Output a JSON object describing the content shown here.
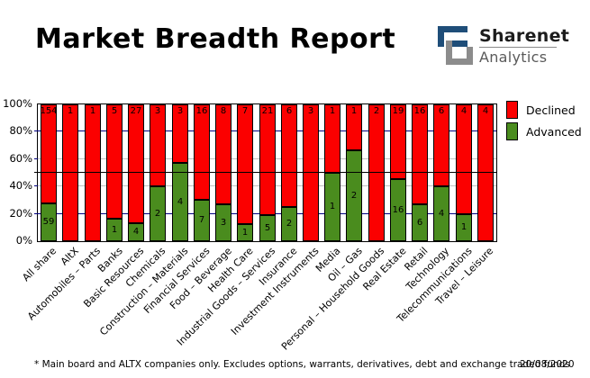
{
  "header": {
    "title": "Market Breadth Report",
    "brand": {
      "name": "Sharenet",
      "tagline": "Analytics",
      "logo_icon": "sharenet-maze-icon"
    }
  },
  "colors": {
    "declined": "#fb0000",
    "advanced": "#4a8c1e",
    "grid_major": "#000080",
    "grid_minor": "#c0c0c0",
    "mid_line": "#000000",
    "brand_blue": "#1f4e79",
    "brand_gray": "#8c8c8c"
  },
  "chart_data": {
    "type": "bar",
    "stacked": true,
    "normalized_to_percent": true,
    "categories": [
      "All share",
      "AltX",
      "Automobiles – Parts",
      "Banks",
      "Basic Resources",
      "Chemicals",
      "Construction – Materials",
      "Financial Services",
      "Food – Beverage",
      "Health Care",
      "Industrial Goods – Services",
      "Insurance",
      "Investment Instruments",
      "Media",
      "Oil – Gas",
      "Personal – Household Goods",
      "Real Estate",
      "Retail",
      "Technology",
      "Telecommunications",
      "Travel – Leisure"
    ],
    "series": [
      {
        "name": "Declined",
        "color": "#fb0000",
        "values": [
          154,
          1,
          1,
          5,
          27,
          3,
          3,
          16,
          8,
          7,
          21,
          6,
          3,
          1,
          1,
          2,
          19,
          16,
          6,
          4,
          4
        ]
      },
      {
        "name": "Advanced",
        "color": "#4a8c1e",
        "values": [
          59,
          0,
          0,
          1,
          4,
          2,
          4,
          7,
          3,
          1,
          5,
          2,
          0,
          1,
          2,
          0,
          16,
          6,
          4,
          1,
          0
        ]
      }
    ],
    "y_ticks": [
      "100%",
      "80%",
      "60%",
      "40%",
      "20%",
      "0%"
    ],
    "ylim": [
      0,
      100
    ],
    "grid": true,
    "reference_line_percent": 50,
    "legend_position": "top-right"
  },
  "legend": {
    "items": [
      {
        "label": "Declined",
        "color": "#fb0000"
      },
      {
        "label": "Advanced",
        "color": "#4a8c1e"
      }
    ]
  },
  "footer": {
    "note": "* Main board and ALTX companies only. Excludes options, warrants, derivatives, debt and exchange traded funds",
    "date": "20/08/2020"
  }
}
